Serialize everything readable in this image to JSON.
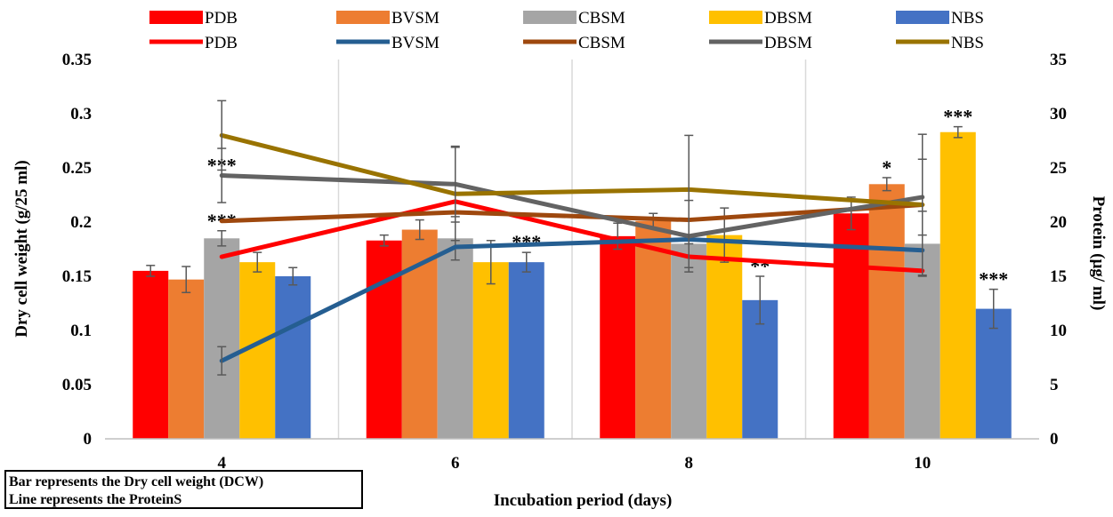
{
  "chart_data": {
    "type": "bar",
    "categories": [
      "4",
      "6",
      "8",
      "10"
    ],
    "xlabel": "Incubation period (days)",
    "ylabel": "Dry  cell weight (g/25 ml)",
    "y2label": "Protein (µg/ ml)",
    "ylim": [
      0,
      0.35
    ],
    "y2lim": [
      0,
      35
    ],
    "yticks": [
      "0",
      "0.05",
      "0.1",
      "0.15",
      "0.2",
      "0.25",
      "0.3",
      "0.35"
    ],
    "y2ticks": [
      "0",
      "5",
      "10",
      "15",
      "20",
      "25",
      "30",
      "35"
    ],
    "grid": "vertical",
    "legend_position": "top",
    "bar_series": [
      {
        "name": "PDB",
        "color": "#ff0000",
        "values": [
          0.155,
          0.183,
          0.187,
          0.208
        ],
        "errors": [
          0.005,
          0.005,
          0.012,
          0.015
        ],
        "sig": [
          "",
          "",
          "",
          ""
        ]
      },
      {
        "name": "BVSM",
        "color": "#ed7d31",
        "values": [
          0.147,
          0.193,
          0.201,
          0.235
        ],
        "errors": [
          0.012,
          0.009,
          0.007,
          0.006
        ],
        "sig": [
          "",
          "",
          "",
          "*"
        ]
      },
      {
        "name": "CBSM",
        "color": "#a5a5a5",
        "values": [
          0.185,
          0.185,
          0.18,
          0.18
        ],
        "errors": [
          0.007,
          0.02,
          0.022,
          0.03
        ],
        "sig": [
          "***",
          "",
          "",
          ""
        ]
      },
      {
        "name": "DBSM",
        "color": "#ffc000",
        "values": [
          0.163,
          0.163,
          0.188,
          0.283
        ],
        "errors": [
          0.009,
          0.02,
          0.025,
          0.005
        ],
        "sig": [
          "",
          "",
          "",
          "***"
        ]
      },
      {
        "name": "NBS",
        "color": "#4472c4",
        "values": [
          0.15,
          0.163,
          0.128,
          0.12
        ],
        "errors": [
          0.008,
          0.009,
          0.022,
          0.018
        ],
        "sig": [
          "",
          "***",
          "**",
          "***"
        ]
      }
    ],
    "line_series": [
      {
        "name": "PDB",
        "color": "#ff0000",
        "values": [
          16.8,
          21.9,
          16.8,
          15.5
        ],
        "errors": [
          0,
          0,
          0,
          0
        ]
      },
      {
        "name": "BVSM",
        "color": "#255e91",
        "values": [
          7.2,
          17.7,
          18.4,
          17.4
        ],
        "errors": [
          1.3,
          0,
          0,
          0
        ]
      },
      {
        "name": "CBSM",
        "color": "#9e480e",
        "values": [
          20.1,
          20.9,
          20.2,
          21.6
        ],
        "errors": [
          0,
          0,
          0,
          0
        ]
      },
      {
        "name": "DBSM",
        "color": "#636363",
        "values": [
          24.3,
          23.5,
          18.7,
          22.3
        ],
        "errors": [
          2.5,
          3.5,
          3.3,
          3.5
        ],
        "sig": [
          "***",
          "",
          "",
          ""
        ]
      },
      {
        "name": "NBS",
        "color": "#997300",
        "values": [
          28.0,
          22.6,
          23.0,
          21.6
        ],
        "errors": [
          3.2,
          4.3,
          5.0,
          6.5
        ]
      }
    ]
  },
  "note": {
    "line1": "Bar represents the Dry cell weight (DCW)",
    "line2": "Line represents the ProteinS"
  }
}
